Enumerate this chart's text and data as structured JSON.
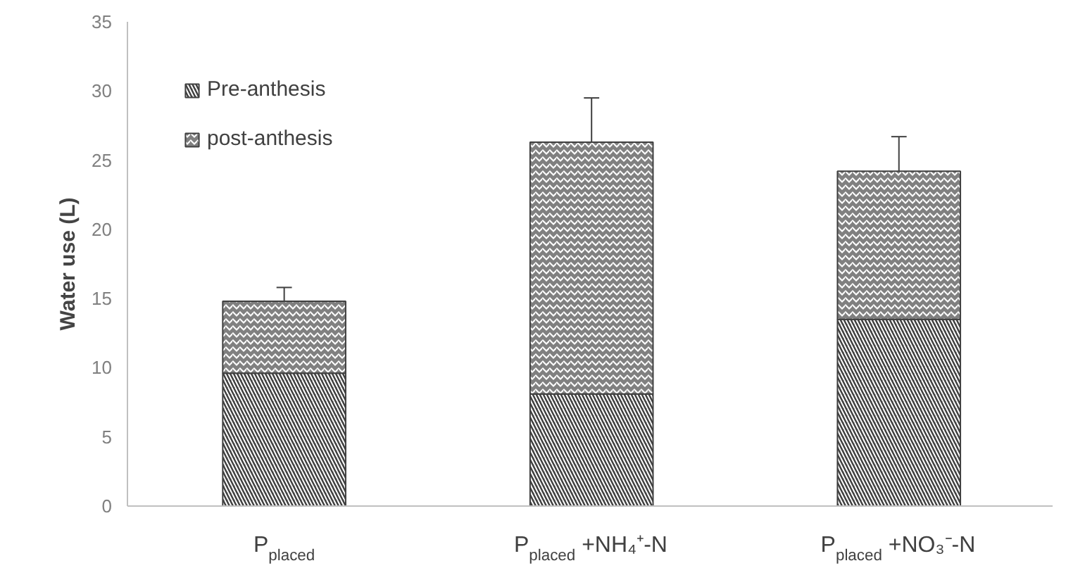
{
  "chart_data": {
    "type": "bar",
    "stacked": true,
    "ylabel": "Water use (L)",
    "categories": [
      "P$_{placed}$",
      "P$_{placed}$ +NH₄⁺-N",
      "P$_{placed}$ +NO₃⁻-N"
    ],
    "series": [
      {
        "name": "Pre-anthesis",
        "color": "#404040",
        "values": [
          9.6,
          8.1,
          13.5
        ],
        "errors": [
          [
            9.6,
            10.8
          ],
          [
            8.1,
            10.0
          ],
          [
            13.5,
            15.8
          ]
        ]
      },
      {
        "name": "post-anthesis",
        "color": "#808080",
        "values": [
          5.2,
          18.2,
          10.7
        ],
        "errors": [
          [
            14.8,
            15.8
          ],
          [
            26.3,
            29.5
          ],
          [
            24.2,
            26.7
          ]
        ]
      }
    ],
    "ylim": [
      0,
      35
    ],
    "yticks": [
      0,
      5,
      10,
      15,
      20,
      25,
      30,
      35
    ],
    "grid": false,
    "legend": "top left"
  }
}
